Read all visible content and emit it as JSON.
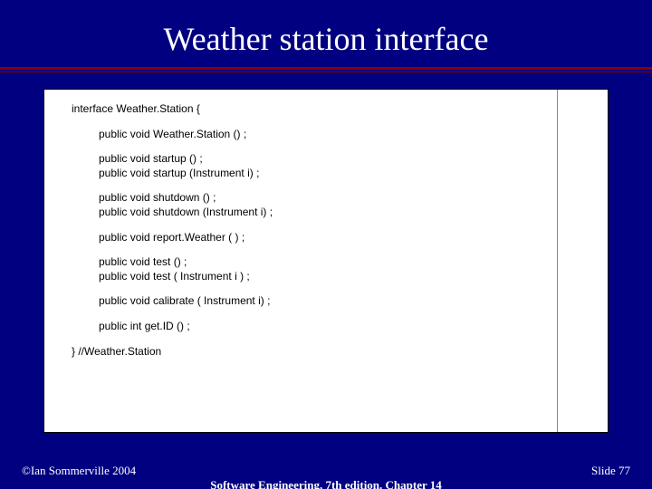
{
  "slide": {
    "background_color": "#000080",
    "accent_rule_color": "#8b0000",
    "title": "Weather station interface",
    "title_color": "#ffffff",
    "title_fontsize": 36
  },
  "code": {
    "open": "interface Weather.Station {",
    "g1_l1": "public void Weather.Station () ;",
    "g2_l1": "public void startup () ;",
    "g2_l2": "public void startup (Instrument i) ;",
    "g3_l1": "public void shutdown () ;",
    "g3_l2": "public void shutdown (Instrument i) ;",
    "g4_l1": "public void report.Weather ( ) ;",
    "g5_l1": "public void test () ;",
    "g5_l2": "public void test ( Instrument i ) ;",
    "g6_l1": "public void calibrate ( Instrument i) ;",
    "g7_l1": "public int get.ID () ;",
    "close": "} //Weather.Station"
  },
  "footer": {
    "left": "©Ian Sommerville 2004",
    "center": "Software Engineering, 7th edition. Chapter 14",
    "right": "Slide  77"
  },
  "styling": {
    "content_bg": "#ffffff",
    "code_font": "Arial",
    "code_fontsize": 12,
    "footer_fontsize": 13,
    "footer_color": "#ffffff"
  }
}
